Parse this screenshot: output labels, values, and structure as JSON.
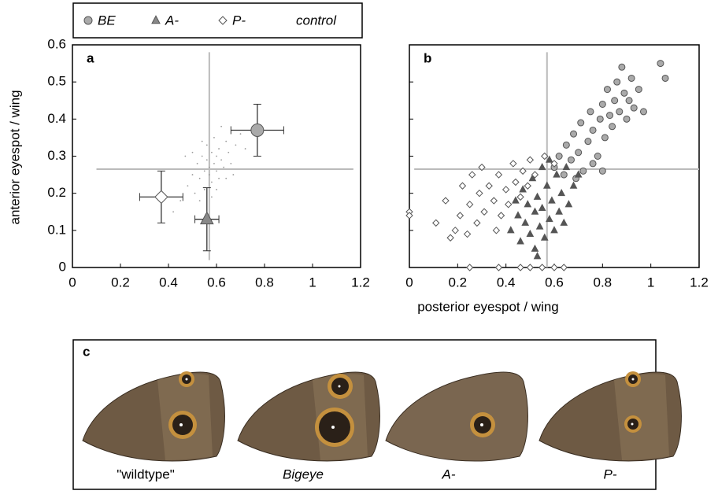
{
  "chart_data": [
    {
      "type": "scatter",
      "panel": "a",
      "xlabel": "posterior eyespot / wing",
      "ylabel": "anterior eyespot / wing",
      "xlim": [
        0,
        1.2
      ],
      "ylim": [
        0,
        0.6
      ],
      "xticks": [
        0,
        0.2,
        0.4,
        0.6,
        0.8,
        1,
        1.2
      ],
      "yticks": [
        0,
        0.1,
        0.2,
        0.3,
        0.4,
        0.5,
        0.6
      ],
      "legend": true,
      "control_lines": {
        "x": 0.57,
        "y": 0.265,
        "x_span": [
          0.1,
          1.17
        ],
        "y_span": [
          0.02,
          0.58
        ],
        "color": "#bbbbbb"
      },
      "series": [
        {
          "name": "BE",
          "marker": "circle",
          "color": "#aaaaaa",
          "x": [
            0.77
          ],
          "values": [
            0.37
          ],
          "xerr": [
            0.11
          ],
          "yerr": [
            0.07
          ]
        },
        {
          "name": "A-",
          "marker": "triangle",
          "color": "#888888",
          "x": [
            0.56
          ],
          "values": [
            0.13
          ],
          "xerr": [
            0.05
          ],
          "yerr": [
            0.085
          ]
        },
        {
          "name": "P-",
          "marker": "diamond",
          "color": "#ffffff",
          "x": [
            0.37
          ],
          "values": [
            0.19
          ],
          "xerr": [
            0.09
          ],
          "yerr": [
            0.07
          ]
        },
        {
          "name": "control",
          "marker": "dot",
          "color": "#999999",
          "x": [
            0.45,
            0.48,
            0.5,
            0.51,
            0.52,
            0.53,
            0.54,
            0.55,
            0.55,
            0.56,
            0.56,
            0.57,
            0.57,
            0.58,
            0.58,
            0.59,
            0.59,
            0.6,
            0.6,
            0.61,
            0.61,
            0.62,
            0.63,
            0.64,
            0.65,
            0.66,
            0.68,
            0.7,
            0.72,
            0.42,
            0.47,
            0.53,
            0.58,
            0.62,
            0.67,
            0.5,
            0.54,
            0.6,
            0.64,
            0.75
          ],
          "values": [
            0.18,
            0.22,
            0.25,
            0.2,
            0.28,
            0.24,
            0.3,
            0.26,
            0.21,
            0.29,
            0.33,
            0.25,
            0.27,
            0.31,
            0.23,
            0.28,
            0.35,
            0.26,
            0.3,
            0.24,
            0.32,
            0.29,
            0.27,
            0.34,
            0.31,
            0.28,
            0.33,
            0.36,
            0.32,
            0.15,
            0.3,
            0.18,
            0.19,
            0.38,
            0.25,
            0.31,
            0.34,
            0.21,
            0.24,
            0.38
          ]
        }
      ]
    },
    {
      "type": "scatter",
      "panel": "b",
      "xlim": [
        0,
        1.2
      ],
      "ylim": [
        0,
        0.6
      ],
      "xticks": [
        0,
        0.2,
        0.4,
        0.6,
        0.8,
        1,
        1.2
      ],
      "yticks": [
        0,
        0.1,
        0.2,
        0.3,
        0.4,
        0.5,
        0.6
      ],
      "control_lines": {
        "x": 0.57,
        "y": 0.265,
        "x_span": [
          0.02,
          1.2
        ],
        "y_span": [
          0,
          0.58
        ],
        "color": "#bbbbbb"
      },
      "series": [
        {
          "marker": "circle",
          "color": "#aaaaaa",
          "x": [
            0.6,
            0.62,
            0.64,
            0.65,
            0.67,
            0.68,
            0.7,
            0.71,
            0.72,
            0.74,
            0.75,
            0.76,
            0.78,
            0.79,
            0.8,
            0.81,
            0.82,
            0.83,
            0.84,
            0.85,
            0.86,
            0.87,
            0.88,
            0.89,
            0.9,
            0.91,
            0.92,
            0.93,
            0.95,
            0.97,
            0.8,
            1.04,
            1.06,
            0.76,
            0.69
          ],
          "values": [
            0.27,
            0.3,
            0.25,
            0.33,
            0.29,
            0.36,
            0.31,
            0.39,
            0.26,
            0.34,
            0.42,
            0.37,
            0.3,
            0.4,
            0.44,
            0.35,
            0.48,
            0.41,
            0.38,
            0.45,
            0.5,
            0.42,
            0.54,
            0.47,
            0.4,
            0.45,
            0.51,
            0.43,
            0.48,
            0.42,
            0.26,
            0.55,
            0.51,
            0.28,
            0.24
          ]
        },
        {
          "marker": "triangle",
          "color": "#555555",
          "x": [
            0.42,
            0.44,
            0.45,
            0.46,
            0.47,
            0.48,
            0.49,
            0.5,
            0.51,
            0.52,
            0.52,
            0.53,
            0.54,
            0.55,
            0.55,
            0.56,
            0.57,
            0.58,
            0.58,
            0.59,
            0.6,
            0.61,
            0.62,
            0.63,
            0.64,
            0.65,
            0.66,
            0.68,
            0.7,
            0.53
          ],
          "values": [
            0.1,
            0.18,
            0.14,
            0.07,
            0.21,
            0.12,
            0.17,
            0.09,
            0.24,
            0.15,
            0.05,
            0.19,
            0.11,
            0.27,
            0.16,
            0.08,
            0.22,
            0.13,
            0.29,
            0.18,
            0.1,
            0.25,
            0.15,
            0.2,
            0.12,
            0.27,
            0.17,
            0.22,
            0.25,
            0.03
          ]
        },
        {
          "marker": "diamond",
          "color": "#ffffff",
          "x": [
            0.0,
            0.0,
            0.11,
            0.15,
            0.17,
            0.19,
            0.21,
            0.22,
            0.24,
            0.25,
            0.26,
            0.28,
            0.29,
            0.3,
            0.31,
            0.33,
            0.35,
            0.36,
            0.37,
            0.38,
            0.4,
            0.41,
            0.43,
            0.44,
            0.46,
            0.47,
            0.49,
            0.5,
            0.52,
            0.56,
            0.6,
            0.25,
            0.37,
            0.46,
            0.5,
            0.55,
            0.6,
            0.64
          ],
          "values": [
            0.15,
            0.14,
            0.12,
            0.18,
            0.08,
            0.1,
            0.14,
            0.22,
            0.09,
            0.17,
            0.25,
            0.12,
            0.2,
            0.27,
            0.15,
            0.22,
            0.18,
            0.1,
            0.25,
            0.14,
            0.21,
            0.17,
            0.28,
            0.23,
            0.19,
            0.26,
            0.22,
            0.29,
            0.25,
            0.3,
            0.28,
            0.0,
            0.0,
            0.0,
            0.0,
            0.0,
            0.0,
            0.0
          ]
        }
      ]
    }
  ],
  "panel_c": {
    "panel": "c",
    "wings": [
      "\"wildtype\"",
      "Bigeye",
      "A-",
      "P-"
    ]
  }
}
